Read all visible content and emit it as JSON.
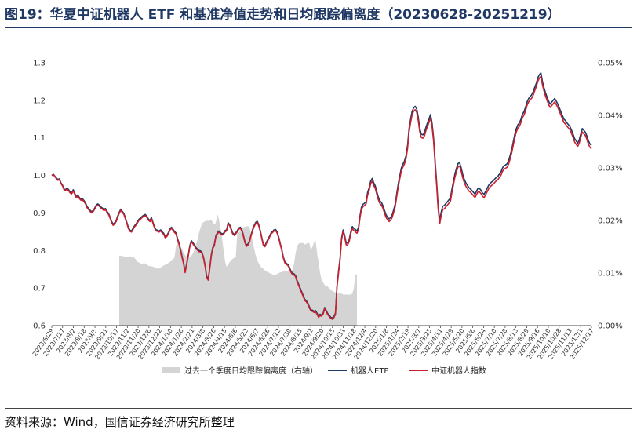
{
  "figure": {
    "title": "图19：华夏中证机器人 ETF 和基准净值走势和日均跟踪偏离度（20230628-20251219）",
    "source": "资料来源：Wind，国信证券经济研究所整理"
  },
  "chart_data": {
    "type": "line",
    "title": "图19：华夏中证机器人 ETF 和基准净值走势和日均跟踪偏离度（20230628-20251219）",
    "xlabel": "",
    "ylabel": "",
    "grid": false,
    "legend_position": "bottom",
    "y_left": {
      "min": 0.6,
      "max": 1.3,
      "ticks": [
        0.6,
        0.7,
        0.8,
        0.9,
        1.0,
        1.1,
        1.2,
        1.3
      ],
      "tick_labels": [
        "0.6",
        "0.7",
        "0.8",
        "0.9",
        "1.0",
        "1.1",
        "1.2",
        "1.3"
      ]
    },
    "y_right": {
      "min": 0.0,
      "max": 0.05,
      "ticks": [
        0.0,
        0.01,
        0.02,
        0.03,
        0.04,
        0.05
      ],
      "tick_labels": [
        "0.00%",
        "0.01%",
        "0.02%",
        "0.03%",
        "0.04%",
        "0.05%"
      ]
    },
    "x_tick_labels": [
      "2023/6/29",
      "2023/7/17",
      "2023/8/2",
      "2023/8/18",
      "2023/9/5",
      "2023/9/21",
      "2023/10/17",
      "2023/11/2",
      "2023/11/20",
      "2023/12/6",
      "2023/12/22",
      "2024/1/10",
      "2024/1/26",
      "2024/2/21",
      "2024/3/8",
      "2024/3/26",
      "2024/4/15",
      "2024/5/6",
      "2024/5/22",
      "2024/6/7",
      "2024/6/26",
      "2024/7/12",
      "2024/7/30",
      "2024/8/15",
      "2024/9/2",
      "2024/9/20",
      "2024/10/15",
      "2024/10/31",
      "2024/11/18",
      "2024/12/4",
      "2024/12/20",
      "2025/1/8",
      "2025/1/24",
      "2025/2/19",
      "2025/3/7",
      "2025/3/25",
      "2025/4/11",
      "2025/4/29",
      "2025/5/20",
      "2025/6/6",
      "2025/6/24",
      "2025/7/10",
      "2025/7/28",
      "2025/8/13",
      "2025/8/29",
      "2025/9/16",
      "2025/10/10",
      "2025/10/28",
      "2025/11/13",
      "2025/12/1",
      "2025/12/17"
    ],
    "series": [
      {
        "name": "过去一个季度日均跟踪偏离度（右轴）",
        "type": "area",
        "axis": "right",
        "color": "#d4d4d4",
        "values": [
          null,
          null,
          null,
          null,
          null,
          null,
          null,
          null,
          null,
          null,
          null,
          null,
          null,
          null,
          null,
          null,
          null,
          null,
          null,
          null,
          null,
          null,
          null,
          null,
          null,
          null,
          null,
          null,
          null,
          null,
          null,
          null,
          null,
          null,
          null,
          null,
          null,
          null,
          null,
          null,
          null,
          null,
          null,
          null,
          0.0133,
          0.0133,
          0.0132,
          0.0132,
          0.0131,
          0.0131,
          0.013,
          0.0132,
          0.0131,
          0.013,
          0.0129,
          0.0125,
          0.0121,
          0.012,
          0.0118,
          0.0117,
          0.0119,
          0.0118,
          0.0116,
          0.0114,
          0.0113,
          0.0113,
          0.0112,
          0.0111,
          0.011,
          0.0108,
          0.0109,
          0.011,
          0.0113,
          0.0114,
          0.0116,
          0.0117,
          0.0119,
          0.0121,
          0.0123,
          0.0125,
          0.013,
          0.015,
          0.0165,
          0.0153,
          0.015,
          0.0145,
          0.0139,
          0.0134,
          0.0131,
          0.0128,
          0.013,
          0.0133,
          0.0137,
          0.0144,
          0.0155,
          0.0163,
          0.0176,
          0.0186,
          0.0194,
          0.0197,
          0.0198,
          0.02,
          0.0199,
          0.02,
          0.0201,
          0.0197,
          0.0192,
          0.0196,
          0.0212,
          0.0203,
          0.0186,
          0.0167,
          0.0144,
          0.0122,
          0.0112,
          0.0115,
          0.0121,
          0.0124,
          0.0127,
          0.0129,
          0.013,
          0.0176,
          0.0177,
          0.0181,
          0.0185,
          0.0187,
          0.0188,
          0.0189,
          0.0189,
          0.0187,
          0.0173,
          0.016,
          0.0146,
          0.0133,
          0.0124,
          0.0118,
          0.0113,
          0.011,
          0.0108,
          0.0105,
          0.0103,
          0.0102,
          0.01,
          0.0099,
          0.0097,
          0.0097,
          0.0097,
          0.0098,
          0.01,
          0.0101,
          0.0102,
          0.0103,
          0.0104,
          0.0104,
          0.0104,
          0.0104,
          0.0104,
          0.0106,
          0.0118,
          0.0138,
          0.0151,
          0.0156,
          0.0157,
          0.0157,
          0.0157,
          0.0154,
          0.0156,
          0.0157,
          0.0157,
          0.0143,
          0.015,
          0.0158,
          0.0162,
          0.0139,
          0.0121,
          0.01,
          0.0087,
          0.0082,
          0.0077,
          0.0075,
          0.0074,
          0.0071,
          0.0068,
          0.0066,
          0.0064,
          0.0063,
          0.0063,
          0.0061,
          0.0061,
          0.0061,
          0.0059,
          0.0059,
          0.0059,
          0.0059,
          0.0059,
          0.0059,
          0.0061,
          0.0071,
          0.0096,
          0.0098
        ]
      },
      {
        "name": "机器人ETF",
        "type": "line",
        "axis": "left",
        "color": "#1f3864",
        "values": [
          1.0,
          1.003,
          0.998,
          0.993,
          0.989,
          0.991,
          0.98,
          0.974,
          0.964,
          0.962,
          0.967,
          0.962,
          0.956,
          0.954,
          0.962,
          0.952,
          0.943,
          0.948,
          0.941,
          0.937,
          0.938,
          0.933,
          0.927,
          0.917,
          0.912,
          0.907,
          0.903,
          0.907,
          0.913,
          0.921,
          0.924,
          0.921,
          0.916,
          0.913,
          0.909,
          0.912,
          0.904,
          0.899,
          0.889,
          0.878,
          0.87,
          0.874,
          0.88,
          0.892,
          0.902,
          0.91,
          0.904,
          0.899,
          0.887,
          0.874,
          0.861,
          0.854,
          0.852,
          0.859,
          0.866,
          0.871,
          0.878,
          0.884,
          0.887,
          0.891,
          0.894,
          0.896,
          0.891,
          0.884,
          0.88,
          0.888,
          0.875,
          0.863,
          0.855,
          0.854,
          0.852,
          0.855,
          0.85,
          0.846,
          0.837,
          0.84,
          0.847,
          0.857,
          0.862,
          0.857,
          0.851,
          0.847,
          0.832,
          0.82,
          0.802,
          0.784,
          0.766,
          0.744,
          0.766,
          0.788,
          0.812,
          0.826,
          0.821,
          0.815,
          0.808,
          0.804,
          0.8,
          0.799,
          0.795,
          0.781,
          0.76,
          0.732,
          0.724,
          0.753,
          0.788,
          0.808,
          0.816,
          0.839,
          0.847,
          0.852,
          0.848,
          0.844,
          0.846,
          0.853,
          0.855,
          0.874,
          0.869,
          0.858,
          0.847,
          0.843,
          0.847,
          0.853,
          0.86,
          0.862,
          0.855,
          0.84,
          0.823,
          0.814,
          0.818,
          0.826,
          0.842,
          0.856,
          0.867,
          0.875,
          0.878,
          0.868,
          0.853,
          0.834,
          0.816,
          0.813,
          0.822,
          0.83,
          0.838,
          0.847,
          0.851,
          0.855,
          0.856,
          0.849,
          0.836,
          0.819,
          0.803,
          0.783,
          0.77,
          0.766,
          0.763,
          0.755,
          0.745,
          0.739,
          0.738,
          0.733,
          0.72,
          0.71,
          0.7,
          0.69,
          0.68,
          0.67,
          0.666,
          0.66,
          0.65,
          0.642,
          0.641,
          0.638,
          0.64,
          0.633,
          0.625,
          0.63,
          0.628,
          0.634,
          0.648,
          0.64,
          0.632,
          0.627,
          0.622,
          0.62,
          0.624,
          0.633,
          0.704,
          0.745,
          0.78,
          0.833,
          0.855,
          0.84,
          0.82,
          0.82,
          0.83,
          0.85,
          0.864,
          0.859,
          0.856,
          0.852,
          0.861,
          0.893,
          0.916,
          0.923,
          0.926,
          0.93,
          0.955,
          0.967,
          0.985,
          0.992,
          0.98,
          0.972,
          0.956,
          0.942,
          0.932,
          0.928,
          0.919,
          0.907,
          0.895,
          0.889,
          0.884,
          0.888,
          0.895,
          0.909,
          0.924,
          0.953,
          0.978,
          1.0,
          1.02,
          1.03,
          1.038,
          1.052,
          1.08,
          1.124,
          1.15,
          1.17,
          1.18,
          1.184,
          1.177,
          1.156,
          1.125,
          1.11,
          1.108,
          1.114,
          1.128,
          1.14,
          1.15,
          1.162,
          1.14,
          1.1,
          1.04,
          0.982,
          0.92,
          0.88,
          0.903,
          0.918,
          0.92,
          0.925,
          0.93,
          0.935,
          0.94,
          0.964,
          0.985,
          1.005,
          1.02,
          1.032,
          1.034,
          1.02,
          1.003,
          0.99,
          0.981,
          0.974,
          0.968,
          0.964,
          0.96,
          0.955,
          0.95,
          0.958,
          0.966,
          0.965,
          0.96,
          0.953,
          0.95,
          0.958,
          0.966,
          0.974,
          0.979,
          0.983,
          0.986,
          0.991,
          0.995,
          0.998,
          1.004,
          1.01,
          1.02,
          1.026,
          1.028,
          1.031,
          1.04,
          1.054,
          1.07,
          1.09,
          1.11,
          1.125,
          1.135,
          1.14,
          1.15,
          1.163,
          1.17,
          1.182,
          1.196,
          1.205,
          1.21,
          1.215,
          1.223,
          1.235,
          1.245,
          1.26,
          1.268,
          1.273,
          1.25,
          1.234,
          1.22,
          1.209,
          1.198,
          1.19,
          1.195,
          1.2,
          1.205,
          1.198,
          1.19,
          1.18,
          1.17,
          1.16,
          1.15,
          1.146,
          1.14,
          1.135,
          1.13,
          1.12,
          1.11,
          1.098,
          1.092,
          1.086,
          1.095,
          1.11,
          1.125,
          1.12,
          1.115,
          1.105,
          1.092,
          1.084,
          1.08
        ]
      },
      {
        "name": "中证机器人指数",
        "type": "line",
        "axis": "left",
        "color": "#cc1f2b",
        "values": [
          1.0,
          1.002,
          0.997,
          0.991,
          0.987,
          0.989,
          0.978,
          0.972,
          0.962,
          0.96,
          0.964,
          0.959,
          0.953,
          0.951,
          0.959,
          0.949,
          0.94,
          0.945,
          0.938,
          0.934,
          0.935,
          0.93,
          0.924,
          0.914,
          0.909,
          0.904,
          0.9,
          0.904,
          0.91,
          0.918,
          0.921,
          0.918,
          0.913,
          0.91,
          0.906,
          0.909,
          0.901,
          0.896,
          0.886,
          0.875,
          0.867,
          0.871,
          0.877,
          0.889,
          0.899,
          0.907,
          0.901,
          0.896,
          0.884,
          0.871,
          0.858,
          0.851,
          0.849,
          0.856,
          0.863,
          0.868,
          0.875,
          0.881,
          0.884,
          0.888,
          0.891,
          0.893,
          0.888,
          0.881,
          0.877,
          0.885,
          0.872,
          0.86,
          0.852,
          0.851,
          0.849,
          0.852,
          0.847,
          0.843,
          0.834,
          0.837,
          0.844,
          0.854,
          0.859,
          0.854,
          0.848,
          0.844,
          0.829,
          0.817,
          0.799,
          0.781,
          0.763,
          0.741,
          0.763,
          0.785,
          0.809,
          0.823,
          0.818,
          0.812,
          0.805,
          0.801,
          0.797,
          0.796,
          0.792,
          0.778,
          0.757,
          0.729,
          0.721,
          0.75,
          0.785,
          0.805,
          0.813,
          0.836,
          0.844,
          0.849,
          0.845,
          0.841,
          0.843,
          0.85,
          0.852,
          0.871,
          0.866,
          0.855,
          0.844,
          0.84,
          0.844,
          0.85,
          0.857,
          0.859,
          0.852,
          0.837,
          0.82,
          0.811,
          0.815,
          0.823,
          0.839,
          0.853,
          0.864,
          0.872,
          0.875,
          0.865,
          0.85,
          0.831,
          0.813,
          0.81,
          0.819,
          0.827,
          0.835,
          0.844,
          0.848,
          0.852,
          0.853,
          0.846,
          0.833,
          0.816,
          0.8,
          0.78,
          0.767,
          0.763,
          0.76,
          0.752,
          0.742,
          0.736,
          0.735,
          0.73,
          0.717,
          0.707,
          0.697,
          0.687,
          0.677,
          0.667,
          0.663,
          0.657,
          0.647,
          0.639,
          0.638,
          0.635,
          0.637,
          0.63,
          0.622,
          0.627,
          0.625,
          0.631,
          0.645,
          0.637,
          0.629,
          0.624,
          0.619,
          0.617,
          0.621,
          0.63,
          0.7,
          0.74,
          0.775,
          0.828,
          0.85,
          0.835,
          0.815,
          0.815,
          0.825,
          0.845,
          0.858,
          0.853,
          0.85,
          0.846,
          0.855,
          0.887,
          0.91,
          0.917,
          0.92,
          0.924,
          0.948,
          0.96,
          0.978,
          0.985,
          0.973,
          0.965,
          0.949,
          0.935,
          0.925,
          0.921,
          0.912,
          0.9,
          0.888,
          0.882,
          0.877,
          0.881,
          0.888,
          0.902,
          0.917,
          0.945,
          0.97,
          0.992,
          1.012,
          1.022,
          1.03,
          1.044,
          1.071,
          1.115,
          1.141,
          1.161,
          1.171,
          1.175,
          1.168,
          1.147,
          1.116,
          1.101,
          1.099,
          1.105,
          1.119,
          1.131,
          1.141,
          1.153,
          1.131,
          1.091,
          1.031,
          0.973,
          0.911,
          0.871,
          0.894,
          0.909,
          0.911,
          0.916,
          0.921,
          0.926,
          0.931,
          0.955,
          0.976,
          0.996,
          1.011,
          1.023,
          1.025,
          1.011,
          0.994,
          0.981,
          0.972,
          0.965,
          0.959,
          0.955,
          0.951,
          0.946,
          0.941,
          0.949,
          0.957,
          0.956,
          0.951,
          0.944,
          0.941,
          0.949,
          0.957,
          0.965,
          0.97,
          0.974,
          0.977,
          0.982,
          0.986,
          0.989,
          0.995,
          1.001,
          1.011,
          1.017,
          1.019,
          1.022,
          1.031,
          1.045,
          1.061,
          1.081,
          1.101,
          1.116,
          1.126,
          1.131,
          1.141,
          1.154,
          1.161,
          1.173,
          1.187,
          1.196,
          1.201,
          1.206,
          1.214,
          1.226,
          1.236,
          1.251,
          1.259,
          1.264,
          1.241,
          1.225,
          1.211,
          1.2,
          1.189,
          1.181,
          1.186,
          1.191,
          1.196,
          1.189,
          1.181,
          1.171,
          1.161,
          1.151,
          1.141,
          1.137,
          1.131,
          1.126,
          1.121,
          1.111,
          1.101,
          1.089,
          1.083,
          1.077,
          1.086,
          1.101,
          1.116,
          1.111,
          1.106,
          1.096,
          1.083,
          1.075,
          1.071
        ]
      }
    ]
  }
}
